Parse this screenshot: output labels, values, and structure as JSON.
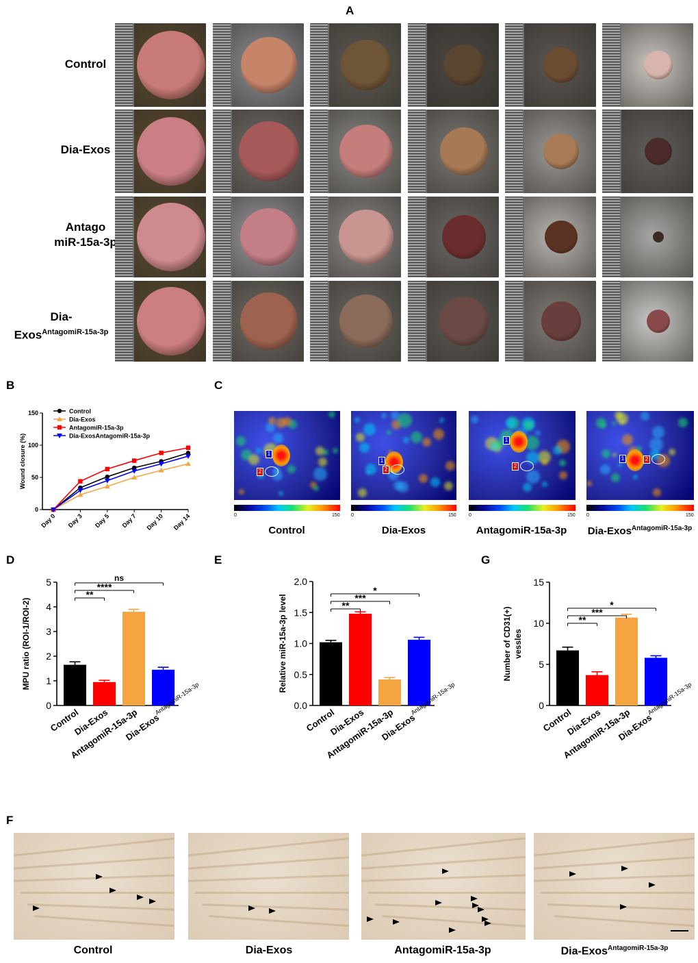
{
  "panels": {
    "A": "A",
    "B": "B",
    "C": "C",
    "D": "D",
    "E": "E",
    "G": "G",
    "F": "F"
  },
  "panelA": {
    "rows": [
      {
        "label": "Control"
      },
      {
        "label": "Dia-Exos"
      },
      {
        "label_line1": "Antago",
        "label_line2": "miR-15a-3p"
      },
      {
        "label_line1": "Dia-",
        "label_base": "Exos",
        "label_sup": "AntagomiR-15a-3p"
      }
    ]
  },
  "panelC": {
    "scale_min": "0",
    "scale_max": "150",
    "labels": [
      "Control",
      "Dia-Exos",
      "AntagomiR-15a-3p"
    ],
    "label4_base": "Dia-Exos",
    "label4_sup": "AntagomiR-15a-3p",
    "roi1": "1",
    "roi2": "2"
  },
  "panelF": {
    "labels": [
      "Control",
      "Dia-Exos",
      "AntagomiR-15a-3p"
    ],
    "label4_base": "Dia-Exos",
    "label4_sup": "AntagomiR-15a-3p"
  },
  "chart_data": [
    {
      "id": "B",
      "type": "line",
      "ylabel": "Wound closure (%)",
      "xlabel": "",
      "categories": [
        "Day 0",
        "Day 3",
        "Day 5",
        "Day 7",
        "Day 10",
        "Day 14"
      ],
      "ylim": [
        0,
        150
      ],
      "yticks": [
        0,
        50,
        100,
        150
      ],
      "series": [
        {
          "name": "Control",
          "color": "#000000",
          "marker": "circle",
          "values": [
            0,
            34,
            51,
            65,
            75,
            88
          ]
        },
        {
          "name": "Dia-Exos",
          "color": "#f5a442",
          "marker": "triangle",
          "values": [
            0,
            23,
            36,
            50,
            61,
            71
          ]
        },
        {
          "name": "AntagomiR-15a-3p",
          "color": "#ff0000",
          "marker": "square",
          "values": [
            0,
            44,
            63,
            76,
            88,
            96
          ]
        },
        {
          "name": "Dia-ExosAntagomiR-15a-3p",
          "color": "#0000ff",
          "marker": "triangle-down",
          "values": [
            0,
            30,
            45,
            60,
            71,
            83
          ]
        }
      ]
    },
    {
      "id": "D",
      "type": "bar",
      "ylabel": "MPU ratio (ROI-1/ROI-2)",
      "categories": [
        "Control",
        "Dia-Exos",
        "AntagomiR-15a-3p",
        "Dia-Exos"
      ],
      "last_cat_sup": "AntagomiR-15a-3p",
      "values": [
        1.65,
        0.95,
        3.8,
        1.45
      ],
      "errors": [
        0.12,
        0.07,
        0.1,
        0.1
      ],
      "colors": [
        "#000000",
        "#ff0000",
        "#f5a442",
        "#0000ff"
      ],
      "ylim": [
        0,
        5
      ],
      "yticks": [
        "0",
        "1",
        "2",
        "3",
        "4",
        "5"
      ],
      "brackets": [
        {
          "from": 0,
          "to": 1,
          "label": "**"
        },
        {
          "from": 0,
          "to": 2,
          "label": "****"
        },
        {
          "from": 0,
          "to": 3,
          "label": "ns"
        }
      ]
    },
    {
      "id": "E",
      "type": "bar",
      "ylabel": "Relative miR-15a-3p level",
      "categories": [
        "Control",
        "Dia-Exos",
        "AntagomiR-15a-3p",
        "Dia-Exos"
      ],
      "last_cat_sup": "AntagomiR-15a-3p",
      "values": [
        1.02,
        1.48,
        0.42,
        1.06
      ],
      "errors": [
        0.03,
        0.03,
        0.03,
        0.04
      ],
      "colors": [
        "#000000",
        "#ff0000",
        "#f5a442",
        "#0000ff"
      ],
      "ylim": [
        0,
        2
      ],
      "yticks": [
        "0.0",
        "0.5",
        "1.0",
        "1.5",
        "2.0"
      ],
      "brackets": [
        {
          "from": 0,
          "to": 1,
          "label": "**"
        },
        {
          "from": 0,
          "to": 2,
          "label": "***"
        },
        {
          "from": 0,
          "to": 3,
          "label": "*"
        }
      ]
    },
    {
      "id": "G",
      "type": "bar",
      "ylabel": "Number of  CD31(+) vessles",
      "ylabel_line1": "Number of  CD31(+)",
      "ylabel_line2": "vessles",
      "categories": [
        "Control",
        "Dia-Exos",
        "AntagomiR-15a-3p",
        "Dia-Exos"
      ],
      "last_cat_sup": "AntagomiR-15a-3p",
      "values": [
        6.7,
        3.7,
        10.7,
        5.8
      ],
      "errors": [
        0.4,
        0.4,
        0.4,
        0.25
      ],
      "colors": [
        "#000000",
        "#ff0000",
        "#f5a442",
        "#0000ff"
      ],
      "ylim": [
        0,
        15
      ],
      "yticks": [
        "0",
        "5",
        "10",
        "15"
      ],
      "brackets": [
        {
          "from": 0,
          "to": 1,
          "label": "**"
        },
        {
          "from": 0,
          "to": 2,
          "label": "***"
        },
        {
          "from": 0,
          "to": 3,
          "label": "*"
        }
      ]
    }
  ]
}
